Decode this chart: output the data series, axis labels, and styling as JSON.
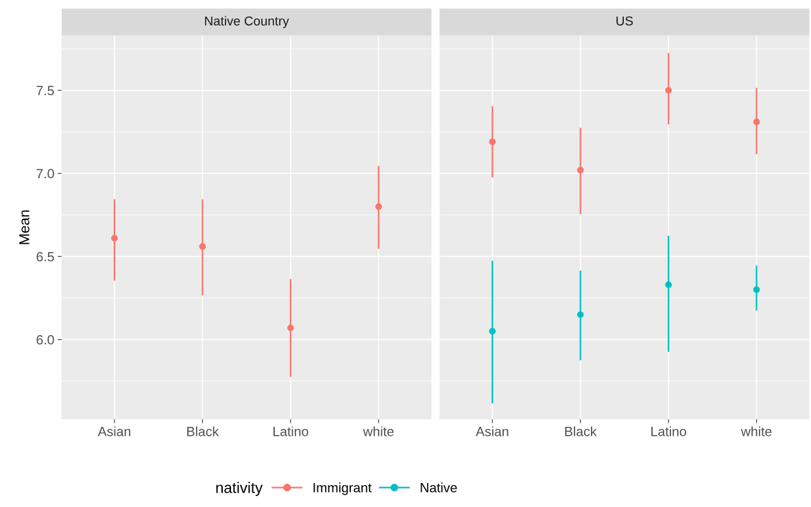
{
  "chart_data": [
    {
      "type": "scatter",
      "title": "Native Country",
      "ylabel": "Mean",
      "categories": [
        "Asian",
        "Black",
        "Latino",
        "white"
      ],
      "series": [
        {
          "name": "Immigrant",
          "color": "#f8766d",
          "values": [
            6.61,
            6.56,
            6.07,
            6.8
          ],
          "errors": [
            [
              6.36,
              6.84
            ],
            [
              6.27,
              6.84
            ],
            [
              5.78,
              6.36
            ],
            [
              6.55,
              7.04
            ]
          ]
        }
      ],
      "ylim": [
        5.52,
        7.83
      ],
      "yticks": [
        {
          "value": 6.0,
          "label": "6.0"
        },
        {
          "value": 6.5,
          "label": "6.5"
        },
        {
          "value": 7.0,
          "label": "7.0"
        },
        {
          "value": 7.5,
          "label": "7.5"
        }
      ],
      "grid": true,
      "marker": "circle"
    },
    {
      "type": "scatter",
      "title": "US",
      "categories": [
        "Asian",
        "Black",
        "Latino",
        "white"
      ],
      "series": [
        {
          "name": "Immigrant",
          "color": "#f8766d",
          "values": [
            7.19,
            7.02,
            7.5,
            7.31
          ],
          "errors": [
            [
              6.98,
              7.4
            ],
            [
              6.76,
              7.27
            ],
            [
              7.3,
              7.72
            ],
            [
              7.12,
              7.51
            ]
          ]
        },
        {
          "name": "Native",
          "color": "#00bfc4",
          "values": [
            6.05,
            6.15,
            6.33,
            6.3
          ],
          "errors": [
            [
              5.62,
              6.47
            ],
            [
              5.88,
              6.41
            ],
            [
              5.93,
              6.62
            ],
            [
              6.18,
              6.44
            ]
          ]
        }
      ],
      "ylim": [
        5.52,
        7.83
      ],
      "yticks": [
        {
          "value": 6.0,
          "label": null
        },
        {
          "value": 6.5,
          "label": null
        },
        {
          "value": 7.0,
          "label": null
        },
        {
          "value": 7.5,
          "label": null
        }
      ],
      "tick_labels": "x",
      "grid": true,
      "marker": "circle",
      "legend": "bottom",
      "legend_title": "nativity"
    }
  ]
}
